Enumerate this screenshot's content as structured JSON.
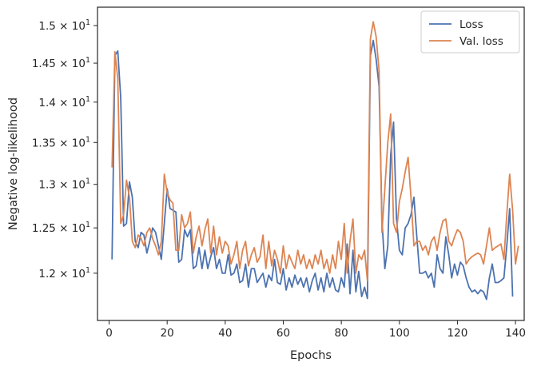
{
  "chart_data": {
    "type": "line",
    "title": "",
    "xlabel": "Epochs",
    "ylabel": "Negative log-likelihood",
    "yscale": "log",
    "xlim": [
      -4,
      143
    ],
    "ylim": [
      11.5,
      15.25
    ],
    "grid": false,
    "legend_position": "top-right",
    "xticks": [
      0,
      20,
      40,
      60,
      80,
      100,
      120,
      140
    ],
    "xtick_labels": [
      "0",
      "20",
      "40",
      "60",
      "80",
      "100",
      "120",
      "140"
    ],
    "yticks": [
      12,
      12.5,
      13,
      13.5,
      14,
      14.5,
      15
    ],
    "ytick_labels": [
      {
        "base": "1.2 × 10",
        "exp": "1"
      },
      {
        "base": "1.25 × 10",
        "exp": "1"
      },
      {
        "base": "1.3 × 10",
        "exp": "1"
      },
      {
        "base": "1.35 × 10",
        "exp": "1"
      },
      {
        "base": "1.4 × 10",
        "exp": "1"
      },
      {
        "base": "1.45 × 10",
        "exp": "1"
      },
      {
        "base": "1.5 × 10",
        "exp": "1"
      }
    ],
    "series": [
      {
        "name": "Loss",
        "color": "#4c72b0",
        "values": [
          12.15,
          14.6,
          14.66,
          14.05,
          12.52,
          12.55,
          13.03,
          12.85,
          12.35,
          12.28,
          12.45,
          12.42,
          12.22,
          12.35,
          12.5,
          12.45,
          12.3,
          12.15,
          12.55,
          12.95,
          12.72,
          12.7,
          12.68,
          12.12,
          12.15,
          12.48,
          12.4,
          12.48,
          12.05,
          12.08,
          12.28,
          12.05,
          12.25,
          12.05,
          12.18,
          12.28,
          12.05,
          12.15,
          12.0,
          12.0,
          12.2,
          11.98,
          12.0,
          12.1,
          11.9,
          11.92,
          12.1,
          11.85,
          12.05,
          12.05,
          11.9,
          11.95,
          12.0,
          11.85,
          11.98,
          11.92,
          12.15,
          11.9,
          11.88,
          12.05,
          11.82,
          11.95,
          11.85,
          11.98,
          11.88,
          11.95,
          11.85,
          11.95,
          11.8,
          11.92,
          12.0,
          11.82,
          11.95,
          11.8,
          12.0,
          11.85,
          11.95,
          11.82,
          11.8,
          11.95,
          11.85,
          12.32,
          11.78,
          12.25,
          11.8,
          12.02,
          11.75,
          11.85,
          11.73,
          14.6,
          14.8,
          14.55,
          14.2,
          12.58,
          12.05,
          12.3,
          13.35,
          13.75,
          12.6,
          12.25,
          12.2,
          12.5,
          12.55,
          12.65,
          12.85,
          12.4,
          12.0,
          12.0,
          12.02,
          11.95,
          12.0,
          11.85,
          12.2,
          12.05,
          12.0,
          12.4,
          12.2,
          11.95,
          12.1,
          11.98,
          12.12,
          12.08,
          11.95,
          11.85,
          11.8,
          11.82,
          11.78,
          11.82,
          11.8,
          11.72,
          11.95,
          12.1,
          11.9,
          11.9,
          11.92,
          11.95,
          12.3,
          12.72,
          11.75
        ]
      },
      {
        "name": "Val. loss",
        "color": "#dd8452",
        "values": [
          13.2,
          14.65,
          14.3,
          12.55,
          12.65,
          13.05,
          12.85,
          12.35,
          12.28,
          12.42,
          12.38,
          12.3,
          12.45,
          12.5,
          12.38,
          12.3,
          12.2,
          12.35,
          13.12,
          12.9,
          12.82,
          12.78,
          12.25,
          12.25,
          12.65,
          12.5,
          12.55,
          12.68,
          12.22,
          12.4,
          12.52,
          12.3,
          12.48,
          12.6,
          12.22,
          12.52,
          12.2,
          12.4,
          12.22,
          12.35,
          12.3,
          12.1,
          12.2,
          12.35,
          12.05,
          12.25,
          12.35,
          12.08,
          12.2,
          12.28,
          12.12,
          12.18,
          12.42,
          12.05,
          12.35,
          12.08,
          12.25,
          12.15,
          12.0,
          12.3,
          12.05,
          12.2,
          12.12,
          12.05,
          12.25,
          12.1,
          12.2,
          12.05,
          12.15,
          12.05,
          12.2,
          12.1,
          12.25,
          12.05,
          12.15,
          12.0,
          12.2,
          12.05,
          12.35,
          12.15,
          12.55,
          12.0,
          12.35,
          12.6,
          12.0,
          12.2,
          12.15,
          12.25,
          11.92,
          14.82,
          15.05,
          14.85,
          14.4,
          12.45,
          12.95,
          13.5,
          13.85,
          12.55,
          12.45,
          12.8,
          12.95,
          13.15,
          13.32,
          12.85,
          12.3,
          12.35,
          12.35,
          12.25,
          12.3,
          12.2,
          12.35,
          12.4,
          12.25,
          12.45,
          12.58,
          12.6,
          12.35,
          12.3,
          12.4,
          12.48,
          12.45,
          12.35,
          12.1,
          12.15,
          12.18,
          12.2,
          12.22,
          12.2,
          12.1,
          12.3,
          12.5,
          12.25,
          12.28,
          12.3,
          12.32,
          12.15,
          12.65,
          13.12,
          12.7,
          12.1,
          12.3
        ]
      }
    ]
  }
}
